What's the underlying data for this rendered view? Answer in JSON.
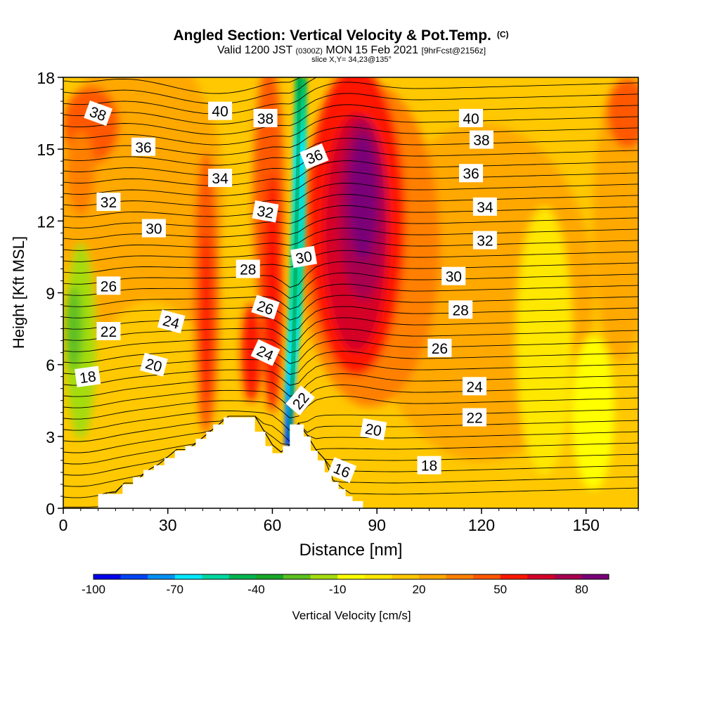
{
  "chart_data": {
    "type": "heatmap",
    "title": "Angled Section: Vertical Velocity & Pot.Temp.",
    "title_unit": "(C)",
    "subtitle_parts": [
      "Valid 1200 JST ",
      "(0300Z)",
      " MON 15 Feb 2021 ",
      "[9hrFcst@2156z]"
    ],
    "slice_label": "slice X,Y= 34,23@135°",
    "xlabel": "Distance [nm]",
    "ylabel": "Height [Kft MSL]",
    "xlim": [
      0,
      165
    ],
    "ylim": [
      0,
      18
    ],
    "x_ticks": [
      0,
      30,
      60,
      90,
      120,
      150
    ],
    "y_ticks": [
      0,
      3,
      6,
      9,
      12,
      15,
      18
    ],
    "colorbar": {
      "label": "Vertical Velocity [cm/s]",
      "tick_labels": [
        -100,
        -70,
        -40,
        -10,
        20,
        50,
        80
      ],
      "levels": [
        -100,
        -90,
        -80,
        -70,
        -60,
        -50,
        -40,
        -30,
        -20,
        -10,
        0,
        10,
        20,
        30,
        40,
        50,
        60,
        70,
        80,
        90
      ],
      "colors": [
        "#0000ee",
        "#0044f5",
        "#0090f5",
        "#00e8ff",
        "#00d8a0",
        "#00b450",
        "#18a828",
        "#5cc020",
        "#a4dc10",
        "#ffff00",
        "#ffe800",
        "#ffc800",
        "#ffa800",
        "#ff8000",
        "#ff5800",
        "#ff1800",
        "#d40028",
        "#a80050",
        "#7a0078"
      ]
    },
    "terrain": [
      [
        0,
        0
      ],
      [
        10,
        0
      ],
      [
        10,
        0.6
      ],
      [
        17,
        0.6
      ],
      [
        17,
        1
      ],
      [
        20,
        1
      ],
      [
        20,
        1.3
      ],
      [
        23,
        1.3
      ],
      [
        23,
        1.6
      ],
      [
        26,
        1.6
      ],
      [
        26,
        1.8
      ],
      [
        29,
        1.8
      ],
      [
        29,
        2.1
      ],
      [
        32,
        2.1
      ],
      [
        32,
        2.4
      ],
      [
        35,
        2.4
      ],
      [
        35,
        2.6
      ],
      [
        38,
        2.6
      ],
      [
        38,
        2.9
      ],
      [
        41,
        2.9
      ],
      [
        41,
        3.2
      ],
      [
        43,
        3.2
      ],
      [
        43,
        3.5
      ],
      [
        46,
        3.5
      ],
      [
        46,
        3.8
      ],
      [
        55,
        3.8
      ],
      [
        55,
        3.2
      ],
      [
        58,
        3.2
      ],
      [
        58,
        2.6
      ],
      [
        60,
        2.6
      ],
      [
        60,
        2.3
      ],
      [
        63,
        2.3
      ],
      [
        63,
        2.6
      ],
      [
        65,
        2.6
      ],
      [
        65,
        3.5
      ],
      [
        69,
        3.5
      ],
      [
        69,
        3.0
      ],
      [
        71,
        3.0
      ],
      [
        71,
        2.4
      ],
      [
        73,
        2.4
      ],
      [
        73,
        2.0
      ],
      [
        75,
        2.0
      ],
      [
        75,
        1.5
      ],
      [
        77,
        1.5
      ],
      [
        77,
        1.1
      ],
      [
        79,
        1.1
      ],
      [
        79,
        0.8
      ],
      [
        81,
        0.8
      ],
      [
        81,
        0.5
      ],
      [
        83,
        0.5
      ],
      [
        83,
        0.3
      ],
      [
        86,
        0.3
      ],
      [
        86,
        0
      ],
      [
        165,
        0
      ]
    ],
    "theta_labels": [
      {
        "text": "40",
        "x": 45,
        "y": 16.6,
        "angle": 0
      },
      {
        "text": "38",
        "x": 10,
        "y": 16.5,
        "angle": 20
      },
      {
        "text": "38",
        "x": 58,
        "y": 16.3,
        "angle": 0
      },
      {
        "text": "40",
        "x": 117,
        "y": 16.3,
        "angle": 0
      },
      {
        "text": "36",
        "x": 23,
        "y": 15.1,
        "angle": 0
      },
      {
        "text": "36",
        "x": 72,
        "y": 14.7,
        "angle": -22
      },
      {
        "text": "38",
        "x": 120,
        "y": 15.4,
        "angle": 0
      },
      {
        "text": "34",
        "x": 45,
        "y": 13.8,
        "angle": 0
      },
      {
        "text": "36",
        "x": 117,
        "y": 14.0,
        "angle": 0
      },
      {
        "text": "32",
        "x": 13,
        "y": 12.8,
        "angle": 0
      },
      {
        "text": "32",
        "x": 58,
        "y": 12.4,
        "angle": 10
      },
      {
        "text": "34",
        "x": 121,
        "y": 12.6,
        "angle": 0
      },
      {
        "text": "30",
        "x": 26,
        "y": 11.7,
        "angle": 0
      },
      {
        "text": "32",
        "x": 121,
        "y": 11.2,
        "angle": 0
      },
      {
        "text": "30",
        "x": 69,
        "y": 10.5,
        "angle": -10
      },
      {
        "text": "28",
        "x": 53,
        "y": 10.0,
        "angle": 0
      },
      {
        "text": "30",
        "x": 112,
        "y": 9.7,
        "angle": 0
      },
      {
        "text": "26",
        "x": 13,
        "y": 9.3,
        "angle": 0
      },
      {
        "text": "26",
        "x": 58,
        "y": 8.4,
        "angle": 18
      },
      {
        "text": "28",
        "x": 114,
        "y": 8.3,
        "angle": 0
      },
      {
        "text": "24",
        "x": 31,
        "y": 7.8,
        "angle": 15
      },
      {
        "text": "22",
        "x": 13,
        "y": 7.4,
        "angle": 0
      },
      {
        "text": "26",
        "x": 108,
        "y": 6.7,
        "angle": 0
      },
      {
        "text": "24",
        "x": 58,
        "y": 6.5,
        "angle": 25
      },
      {
        "text": "20",
        "x": 26,
        "y": 6.0,
        "angle": 15
      },
      {
        "text": "18",
        "x": 7,
        "y": 5.5,
        "angle": -8
      },
      {
        "text": "24",
        "x": 118,
        "y": 5.1,
        "angle": 0
      },
      {
        "text": "22",
        "x": 68,
        "y": 4.5,
        "angle": -50
      },
      {
        "text": "22",
        "x": 118,
        "y": 3.8,
        "angle": 0
      },
      {
        "text": "20",
        "x": 89,
        "y": 3.3,
        "angle": 10
      },
      {
        "text": "18",
        "x": 105,
        "y": 1.8,
        "angle": 0
      },
      {
        "text": "16",
        "x": 80,
        "y": 1.6,
        "angle": 22
      }
    ]
  }
}
